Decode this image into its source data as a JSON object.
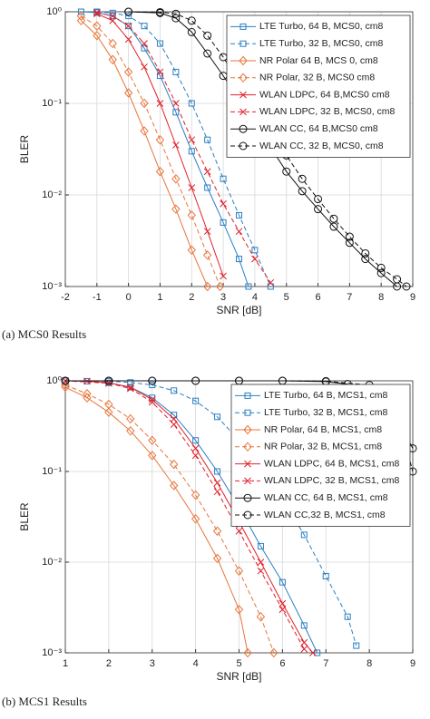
{
  "chart_data": [
    {
      "type": "line",
      "yscale": "log",
      "grid": true,
      "legend": "upper right",
      "xlabel": "SNR [dB]",
      "ylabel": "BLER",
      "caption": "(a) MCS0 Results",
      "xlim": [
        -2,
        9
      ],
      "xticks": [
        -2,
        -1,
        0,
        1,
        2,
        3,
        4,
        5,
        6,
        7,
        8,
        9
      ],
      "ylim": [
        0.001,
        1
      ],
      "yticks": [
        {
          "value": 0.001,
          "label": "10⁻³"
        },
        {
          "value": 0.01,
          "label": "10⁻²"
        },
        {
          "value": 0.1,
          "label": "10⁻¹"
        },
        {
          "value": 1,
          "label": "10⁰"
        }
      ],
      "series": [
        {
          "name": "LTE Turbo, 64 B, MCS0, cm8",
          "color": "#2a7fc4",
          "marker": "square",
          "linestyle": "solid",
          "x": [
            -1.5,
            -1,
            -0.5,
            0,
            0.5,
            1,
            1.5,
            2,
            2.5,
            3,
            3.5,
            3.8
          ],
          "values": [
            1,
            0.98,
            0.9,
            0.7,
            0.4,
            0.2,
            0.08,
            0.03,
            0.012,
            0.005,
            0.002,
            0.001
          ]
        },
        {
          "name": "LTE Turbo, 32 B, MCS0, cm8",
          "color": "#2a7fc4",
          "marker": "square",
          "linestyle": "dashed",
          "x": [
            -1,
            -0.5,
            0,
            0.5,
            1,
            1.5,
            2,
            2.5,
            3,
            3.5,
            4,
            4.5
          ],
          "values": [
            1,
            0.97,
            0.9,
            0.7,
            0.45,
            0.22,
            0.1,
            0.04,
            0.015,
            0.006,
            0.0025,
            0.001
          ]
        },
        {
          "name": "NR Polar 64 B, MCS 0, cm8",
          "color": "#e8753a",
          "marker": "diamond",
          "linestyle": "solid",
          "x": [
            -1.5,
            -1,
            -0.5,
            0,
            0.5,
            1,
            1.5,
            2,
            2.5
          ],
          "values": [
            0.8,
            0.55,
            0.3,
            0.13,
            0.05,
            0.018,
            0.007,
            0.0025,
            0.001
          ]
        },
        {
          "name": "NR Polar, 32 B, MCS0 cm8",
          "color": "#e8753a",
          "marker": "diamond",
          "linestyle": "dashed",
          "x": [
            -1.5,
            -1,
            -0.5,
            0,
            0.5,
            1,
            1.5,
            2,
            2.5,
            2.9
          ],
          "values": [
            0.9,
            0.7,
            0.45,
            0.22,
            0.1,
            0.04,
            0.015,
            0.006,
            0.0022,
            0.001
          ]
        },
        {
          "name": "WLAN LDPC, 64 B,MCS0 cm8",
          "color": "#e0202a",
          "marker": "x",
          "linestyle": "solid",
          "x": [
            -1,
            -0.5,
            0,
            0.5,
            1,
            1.5,
            2,
            2.5,
            3
          ],
          "values": [
            0.95,
            0.8,
            0.5,
            0.25,
            0.1,
            0.035,
            0.012,
            0.004,
            0.0013
          ]
        },
        {
          "name": "WLAN LDPC, 32 B, MCS0, cm8",
          "color": "#e0202a",
          "marker": "x",
          "linestyle": "dashed",
          "x": [
            -1,
            -0.5,
            0,
            0.5,
            1,
            1.5,
            2,
            2.5,
            3,
            3.5,
            4,
            4.5
          ],
          "values": [
            0.98,
            0.9,
            0.7,
            0.45,
            0.22,
            0.1,
            0.04,
            0.018,
            0.008,
            0.004,
            0.002,
            0.0011
          ]
        },
        {
          "name": "WLAN CC, 64 B,MCS0 cm8",
          "color": "#111111",
          "marker": "circle",
          "linestyle": "solid",
          "x": [
            0,
            1,
            1.5,
            2,
            2.5,
            3,
            3.5,
            4,
            4.5,
            5,
            5.5,
            6,
            6.5,
            7,
            7.5,
            8,
            8.5
          ],
          "values": [
            1,
            0.97,
            0.85,
            0.6,
            0.35,
            0.2,
            0.11,
            0.06,
            0.033,
            0.018,
            0.011,
            0.007,
            0.0045,
            0.003,
            0.002,
            0.0014,
            0.001
          ]
        },
        {
          "name": "WLAN CC, 32 B, MCS0, cm8",
          "color": "#111111",
          "marker": "circle",
          "linestyle": "dashed",
          "x": [
            0,
            1,
            1.5,
            2,
            2.5,
            3,
            3.5,
            4,
            4.5,
            5,
            5.5,
            6,
            6.5,
            7,
            7.5,
            8,
            8.5,
            8.8
          ],
          "values": [
            1,
            0.99,
            0.95,
            0.8,
            0.55,
            0.32,
            0.17,
            0.09,
            0.05,
            0.027,
            0.015,
            0.009,
            0.0055,
            0.0035,
            0.0023,
            0.0016,
            0.0012,
            0.001
          ]
        }
      ]
    },
    {
      "type": "line",
      "yscale": "log",
      "grid": true,
      "legend": "upper right",
      "xlabel": "SNR [dB]",
      "ylabel": "BLER",
      "caption": "(b) MCS1 Results",
      "xlim": [
        1,
        9
      ],
      "xticks": [
        1,
        2,
        3,
        4,
        5,
        6,
        7,
        8,
        9
      ],
      "ylim": [
        0.001,
        1
      ],
      "yticks": [
        {
          "value": 0.001,
          "label": "10⁻³"
        },
        {
          "value": 0.01,
          "label": "10⁻²"
        },
        {
          "value": 0.1,
          "label": "10⁻¹"
        },
        {
          "value": 1,
          "label": "10⁰"
        }
      ],
      "series": [
        {
          "name": "LTE Turbo, 64 B, MCS1, cm8",
          "color": "#2a7fc4",
          "marker": "square",
          "linestyle": "solid",
          "x": [
            1,
            1.5,
            2,
            2.5,
            3,
            3.5,
            4,
            4.5,
            5,
            5.5,
            6,
            6.5,
            6.8
          ],
          "values": [
            1,
            0.99,
            0.95,
            0.85,
            0.65,
            0.42,
            0.22,
            0.1,
            0.04,
            0.015,
            0.006,
            0.002,
            0.001
          ]
        },
        {
          "name": "LTE Turbo, 32 B, MCS1, cm8",
          "color": "#2a7fc4",
          "marker": "square",
          "linestyle": "dashed",
          "x": [
            1,
            2,
            2.5,
            3,
            3.5,
            4,
            4.5,
            5,
            5.5,
            6,
            6.5,
            7,
            7.5,
            7.7
          ],
          "values": [
            1,
            0.99,
            0.96,
            0.9,
            0.78,
            0.6,
            0.4,
            0.22,
            0.11,
            0.05,
            0.02,
            0.007,
            0.0025,
            0.0012
          ]
        },
        {
          "name": "NR Polar, 64 B, MCS1, cm8",
          "color": "#e8753a",
          "marker": "diamond",
          "linestyle": "solid",
          "x": [
            1,
            1.5,
            2,
            2.5,
            3,
            3.5,
            4,
            4.5,
            5,
            5.2
          ],
          "values": [
            0.85,
            0.65,
            0.45,
            0.28,
            0.15,
            0.07,
            0.03,
            0.011,
            0.003,
            0.001
          ]
        },
        {
          "name": "NR Polar, 32 B, MCS1, cm8",
          "color": "#e8753a",
          "marker": "diamond",
          "linestyle": "dashed",
          "x": [
            1,
            1.5,
            2,
            2.5,
            3,
            3.5,
            4,
            4.5,
            5,
            5.5,
            5.8
          ],
          "values": [
            0.9,
            0.72,
            0.55,
            0.38,
            0.22,
            0.12,
            0.055,
            0.022,
            0.008,
            0.0025,
            0.001
          ]
        },
        {
          "name": "WLAN LDPC, 64 B, MCS1, cm8",
          "color": "#e0202a",
          "marker": "x",
          "linestyle": "solid",
          "x": [
            1,
            1.5,
            2,
            2.5,
            3,
            3.5,
            4,
            4.5,
            5,
            5.5,
            6,
            6.5,
            6.7
          ],
          "values": [
            1,
            0.99,
            0.95,
            0.85,
            0.62,
            0.38,
            0.18,
            0.075,
            0.028,
            0.01,
            0.0035,
            0.0013,
            0.001
          ]
        },
        {
          "name": "WLAN LDPC, 32 B, MCS1, cm8",
          "color": "#e0202a",
          "marker": "x",
          "linestyle": "dashed",
          "x": [
            1,
            2,
            2.5,
            3,
            3.5,
            4,
            4.5,
            5,
            5.5,
            6,
            6.5
          ],
          "values": [
            1,
            0.94,
            0.82,
            0.58,
            0.33,
            0.15,
            0.06,
            0.022,
            0.008,
            0.003,
            0.0011
          ]
        },
        {
          "name": "WLAN CC, 64 B, MCS1, cm8",
          "color": "#111111",
          "marker": "circle",
          "linestyle": "solid",
          "x": [
            1,
            2,
            3,
            4,
            5,
            6,
            7,
            7.5,
            8,
            8.5,
            9
          ],
          "values": [
            1,
            1,
            1,
            1,
            1,
            1,
            0.98,
            0.92,
            0.75,
            0.5,
            0.18
          ]
        },
        {
          "name": "WLAN CC,32 B, MCS1, cm8",
          "color": "#111111",
          "marker": "circle",
          "linestyle": "dashed",
          "x": [
            1,
            2,
            3,
            4,
            5,
            6,
            7,
            8,
            8.5,
            9
          ],
          "values": [
            1,
            1,
            1,
            1,
            1,
            1,
            0.99,
            0.9,
            0.75,
            0.1
          ]
        }
      ]
    }
  ]
}
